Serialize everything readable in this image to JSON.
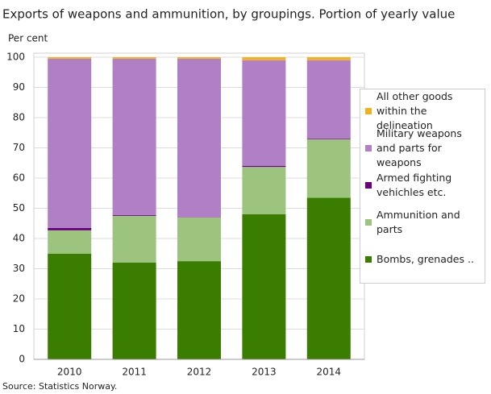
{
  "chart_data": {
    "type": "stacked-bar",
    "title": "Exports of weapons and ammunition, by groupings. Portion of yearly value",
    "y_label": "Per cent",
    "source": "Source: Statistics Norway.",
    "categories": [
      "2010",
      "2011",
      "2012",
      "2013",
      "2014"
    ],
    "series": [
      {
        "name": "Bombs, grenades ..",
        "color": "#3a7d00",
        "values": [
          35,
          32,
          32.5,
          48,
          53.5
        ]
      },
      {
        "name": "Ammunition and parts",
        "color": "#9dc47e",
        "values": [
          7.7,
          15.5,
          14.5,
          15.7,
          19.3
        ]
      },
      {
        "name": "Armed fighting vehichles etc.",
        "color": "#6a0080",
        "values": [
          0.8,
          0.3,
          0.1,
          0.3,
          0.2
        ]
      },
      {
        "name": "Military weapons and parts for weapons",
        "color": "#b07fc5",
        "values": [
          56,
          51.7,
          52.4,
          35,
          26
        ]
      },
      {
        "name": "All other goods within the delineation",
        "color": "#f0b21e",
        "values": [
          0.5,
          0.5,
          0.5,
          1,
          1
        ]
      }
    ],
    "ylim": [
      0,
      100
    ],
    "yticks": [
      0,
      10,
      20,
      30,
      40,
      50,
      60,
      70,
      80,
      90,
      100
    ],
    "grid": true
  }
}
